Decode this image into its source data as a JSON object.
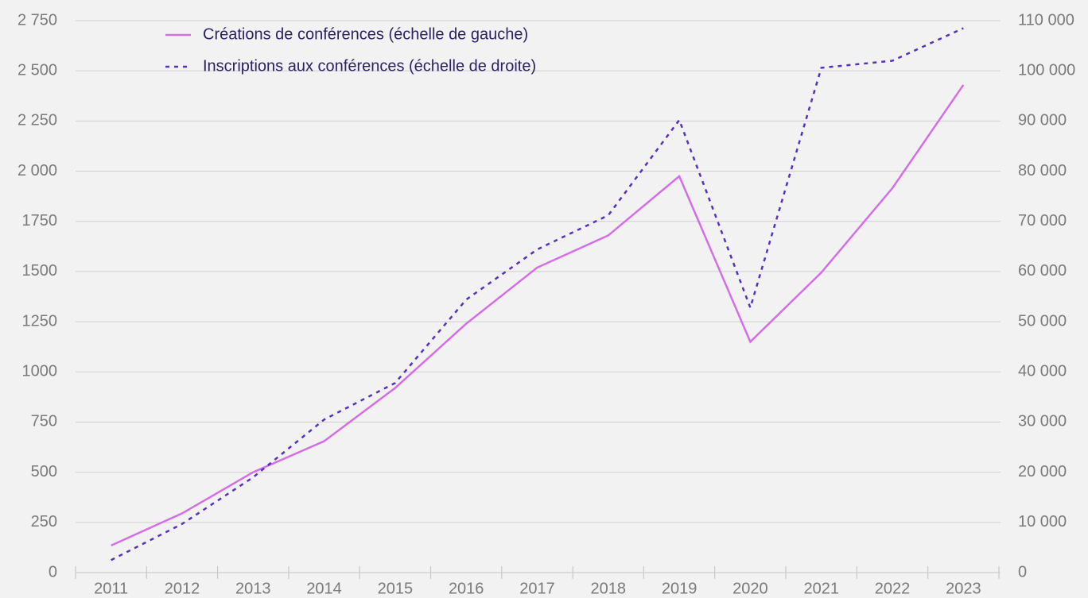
{
  "chart_data": {
    "type": "line",
    "categories": [
      "2011",
      "2012",
      "2013",
      "2014",
      "2015",
      "2016",
      "2017",
      "2018",
      "2019",
      "2020",
      "2021",
      "2022",
      "2023"
    ],
    "series": [
      {
        "name": "Créations de conférences (échelle de gauche)",
        "color": "#d46ee8",
        "dash": false,
        "values": [
          135,
          295,
          500,
          655,
          920,
          1240,
          1520,
          1680,
          1975,
          1150,
          1495,
          1915,
          2430
        ]
      },
      {
        "name": "Inscriptions aux conférences (échelle de droite)",
        "color": "#5630c0",
        "dash": true,
        "axis": "y2",
        "values": [
          2500,
          9700,
          19000,
          30500,
          37800,
          54400,
          64400,
          71200,
          90200,
          52800,
          100600,
          102000,
          108500
        ]
      }
    ],
    "ylim": [
      0,
      2750
    ],
    "yticks": [
      0,
      250,
      500,
      750,
      {
        "value": 1000,
        "label": "1000"
      },
      1250,
      1500,
      1750,
      {
        "value": 2000,
        "label": "2 000"
      },
      {
        "value": 2250,
        "label": "2 250"
      },
      {
        "value": 2500,
        "label": "2 500"
      },
      {
        "value": 2750,
        "label": "2 750"
      }
    ],
    "y2lim": [
      0,
      110000
    ],
    "y2ticks": [
      0,
      {
        "value": 10000,
        "label": "10 000"
      },
      {
        "value": 20000,
        "label": "20 000"
      },
      {
        "value": 30000,
        "label": "30 000"
      },
      {
        "value": 40000,
        "label": "40 000"
      },
      {
        "value": 50000,
        "label": "50 000"
      },
      {
        "value": 60000,
        "label": "60 000"
      },
      {
        "value": 70000,
        "label": "70 000"
      },
      {
        "value": 80000,
        "label": "80 000"
      },
      {
        "value": 90000,
        "label": "90 000"
      },
      {
        "value": 100000,
        "label": "100 000"
      },
      {
        "value": 110000,
        "label": "110 000"
      }
    ],
    "grid": true,
    "legend": "top-left"
  }
}
